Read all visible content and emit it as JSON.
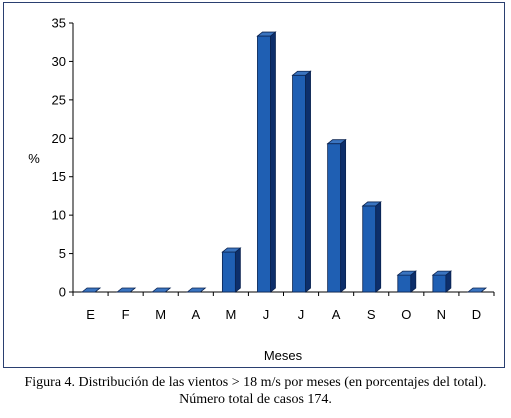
{
  "chart_data": {
    "type": "bar",
    "categories": [
      "E",
      "F",
      "M",
      "A",
      "M",
      "J",
      "J",
      "A",
      "S",
      "O",
      "N",
      "D"
    ],
    "values": [
      0,
      0,
      0,
      0,
      5.2,
      33.3,
      28.2,
      19.3,
      11.2,
      2.2,
      2.2,
      0
    ],
    "title": "",
    "xlabel": "Meses",
    "ylabel": "%",
    "ylim": [
      0,
      35
    ],
    "yticks": [
      "0",
      "5",
      "10",
      "15",
      "20",
      "25",
      "30",
      "35"
    ],
    "grid": false,
    "legend": "none",
    "bar_style": "3d",
    "colors": {
      "bar_front": "#1f5fb3",
      "bar_side": "#0d2f6b",
      "bar_top": "#3a74c0",
      "frame": "#2a3f70"
    }
  },
  "caption": {
    "line1": "Figura 4. Distribución de las vientos > 18 m/s por meses (en porcentajes del total).",
    "line2": "Número total de casos 174."
  }
}
